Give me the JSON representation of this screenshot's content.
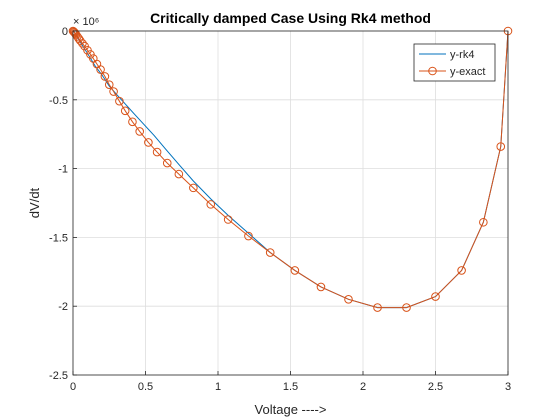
{
  "chart_data": {
    "type": "line",
    "title": "Critically damped Case Using Rk4 method",
    "xlabel": "Voltage ---->",
    "ylabel": "dV/dt",
    "y_exponent_label": "× 10⁶",
    "xlim": [
      0,
      3
    ],
    "ylim": [
      -2500000,
      0
    ],
    "xticks": [
      0,
      0.5,
      1,
      1.5,
      2,
      2.5,
      3
    ],
    "xtick_labels": [
      "0",
      "0.5",
      "1",
      "1.5",
      "2",
      "2.5",
      "3"
    ],
    "yticks": [
      0,
      -500000,
      -1000000,
      -1500000,
      -2000000,
      -2500000
    ],
    "ytick_labels": [
      "0",
      "-0.5",
      "-1",
      "-1.5",
      "-2",
      "-2.5"
    ],
    "grid": true,
    "legend_position": "top-right",
    "series": [
      {
        "name": "y-rk4",
        "color": "#0072bd",
        "marker": "none",
        "x": [
          0,
          0.01,
          0.02,
          0.03,
          0.05,
          0.08,
          0.11,
          0.15,
          0.2,
          0.25,
          0.3,
          0.36,
          0.42,
          0.49,
          0.56,
          0.64,
          0.73,
          0.83,
          0.95,
          1.07,
          1.21,
          1.36,
          1.53,
          1.71,
          1.9,
          2.1,
          2.3,
          2.5,
          2.68,
          2.83,
          2.95,
          3.0
        ],
        "y": [
          0,
          -10000,
          -25000,
          -45000,
          -80000,
          -130000,
          -180000,
          -250000,
          -320000,
          -400000,
          -460000,
          -530000,
          -600000,
          -680000,
          -760000,
          -860000,
          -970000,
          -1090000,
          -1220000,
          -1340000,
          -1470000,
          -1610000,
          -1740000,
          -1860000,
          -1950000,
          -2010000,
          -2010000,
          -1930000,
          -1740000,
          -1390000,
          -840000,
          0
        ]
      },
      {
        "name": "y-exact",
        "color": "#d95319",
        "marker": "circle",
        "x": [
          0,
          0.005,
          0.01,
          0.015,
          0.02,
          0.03,
          0.04,
          0.05,
          0.065,
          0.08,
          0.1,
          0.12,
          0.14,
          0.165,
          0.19,
          0.22,
          0.25,
          0.28,
          0.32,
          0.36,
          0.41,
          0.46,
          0.52,
          0.58,
          0.65,
          0.73,
          0.83,
          0.95,
          1.07,
          1.21,
          1.36,
          1.53,
          1.71,
          1.9,
          2.1,
          2.3,
          2.5,
          2.68,
          2.83,
          2.95,
          3.0
        ],
        "y": [
          0,
          -5000,
          -10000,
          -18000,
          -25000,
          -40000,
          -55000,
          -70000,
          -90000,
          -110000,
          -140000,
          -170000,
          -200000,
          -240000,
          -280000,
          -330000,
          -390000,
          -440000,
          -510000,
          -580000,
          -660000,
          -730000,
          -810000,
          -880000,
          -960000,
          -1040000,
          -1140000,
          -1260000,
          -1370000,
          -1490000,
          -1610000,
          -1740000,
          -1860000,
          -1950000,
          -2010000,
          -2010000,
          -1930000,
          -1740000,
          -1390000,
          -840000,
          0
        ]
      }
    ]
  }
}
